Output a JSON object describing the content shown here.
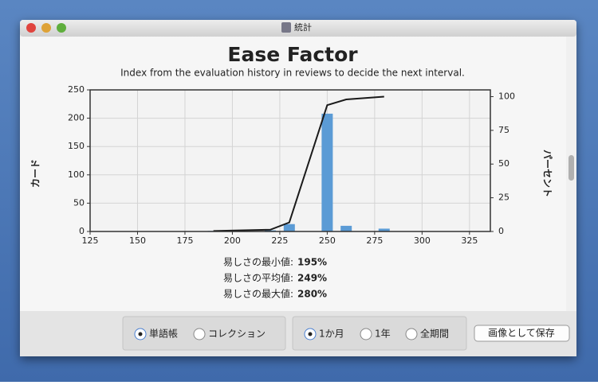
{
  "window": {
    "title": "統計"
  },
  "chart_data": {
    "type": "bar",
    "title": "Ease Factor",
    "subtitle": "Index from the evaluation history in reviews to decide the next interval.",
    "y_label": "カード",
    "y2_label": "パーセント",
    "x": [
      190,
      220,
      230,
      250,
      260,
      280
    ],
    "series": [
      {
        "type": "bar",
        "color": "#5b9bd5",
        "values": [
          1,
          2,
          13,
          208,
          10,
          5
        ]
      },
      {
        "type": "line",
        "axis": "y2",
        "color": "#1a1a1a",
        "values": [
          0.4,
          1.3,
          6.7,
          93.7,
          97.9,
          100
        ]
      }
    ],
    "xlim": [
      125,
      336
    ],
    "xticks": [
      125,
      150,
      175,
      200,
      225,
      250,
      275,
      300,
      325
    ],
    "ylim": [
      0,
      250
    ],
    "yticks": [
      0,
      50,
      100,
      150,
      200,
      250
    ],
    "y2lim": [
      0,
      105
    ],
    "y2ticks": [
      0,
      25,
      50,
      75,
      100
    ],
    "grid": true
  },
  "stats": [
    {
      "label": "易しさの最小値:",
      "value": "195%"
    },
    {
      "label": "易しさの平均値:",
      "value": "249%"
    },
    {
      "label": "易しさの最大値:",
      "value": "280%"
    }
  ],
  "controls": {
    "deck_scope": [
      {
        "label": "単語帳",
        "selected": true
      },
      {
        "label": "コレクション",
        "selected": false
      }
    ],
    "period": [
      {
        "label": "1か月",
        "selected": true
      },
      {
        "label": "1年",
        "selected": false
      },
      {
        "label": "全期間",
        "selected": false
      }
    ],
    "save_button": "画像として保存"
  }
}
